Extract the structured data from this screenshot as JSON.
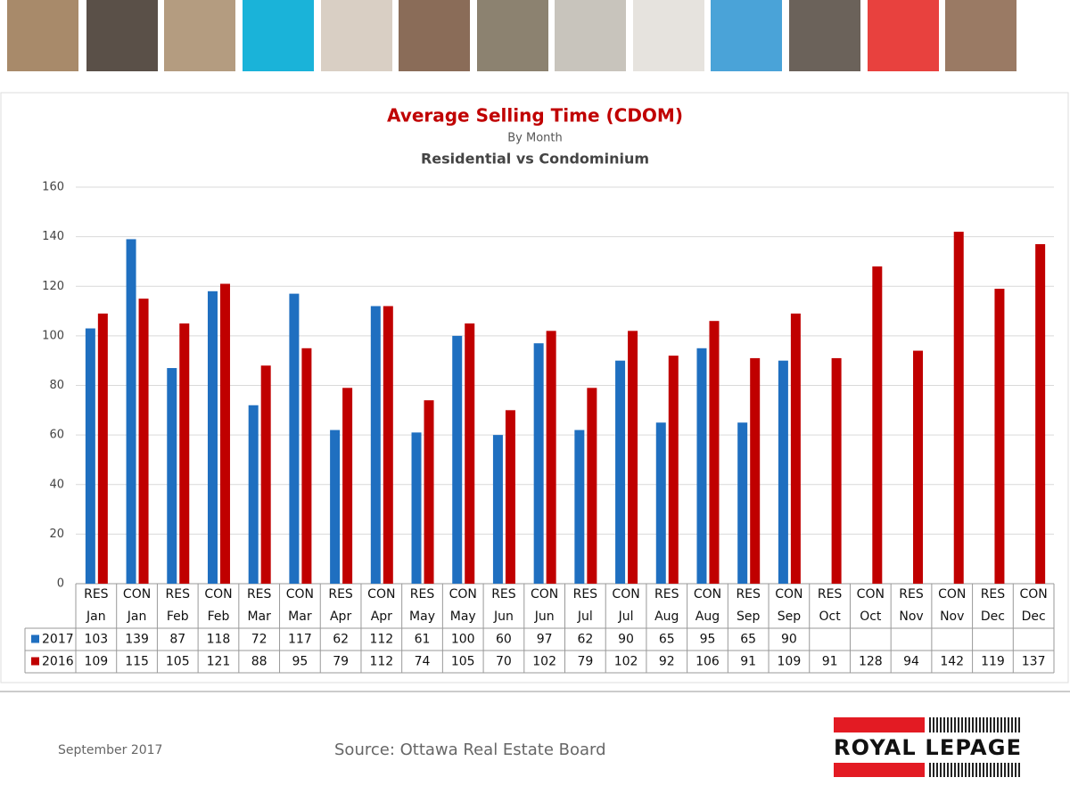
{
  "chart_data": {
    "type": "bar",
    "title": "Average Selling Time (CDOM)",
    "subtitle": "By Month",
    "subtitle2": "Residential vs Condominium",
    "categories": [
      [
        "RES",
        "Jan"
      ],
      [
        "CON",
        "Jan"
      ],
      [
        "RES",
        "Feb"
      ],
      [
        "CON",
        "Feb"
      ],
      [
        "RES",
        "Mar"
      ],
      [
        "CON",
        "Mar"
      ],
      [
        "RES",
        "Apr"
      ],
      [
        "CON",
        "Apr"
      ],
      [
        "RES",
        "May"
      ],
      [
        "CON",
        "May"
      ],
      [
        "RES",
        "Jun"
      ],
      [
        "CON",
        "Jun"
      ],
      [
        "RES",
        "Jul"
      ],
      [
        "CON",
        "Jul"
      ],
      [
        "RES",
        "Aug"
      ],
      [
        "CON",
        "Aug"
      ],
      [
        "RES",
        "Sep"
      ],
      [
        "CON",
        "Sep"
      ],
      [
        "RES",
        "Oct"
      ],
      [
        "CON",
        "Oct"
      ],
      [
        "RES",
        "Nov"
      ],
      [
        "CON",
        "Nov"
      ],
      [
        "RES",
        "Dec"
      ],
      [
        "CON",
        "Dec"
      ]
    ],
    "series": [
      {
        "name": "2017",
        "color": "#1f6fc0",
        "values": [
          103,
          139,
          87,
          118,
          72,
          117,
          62,
          112,
          61,
          100,
          60,
          97,
          62,
          90,
          65,
          95,
          65,
          90,
          null,
          null,
          null,
          null,
          null,
          null
        ]
      },
      {
        "name": "2016",
        "color": "#c00000",
        "values": [
          109,
          115,
          105,
          121,
          88,
          95,
          79,
          112,
          74,
          105,
          70,
          102,
          79,
          102,
          92,
          106,
          91,
          109,
          91,
          128,
          94,
          142,
          119,
          137
        ]
      }
    ],
    "ylim": [
      0,
      160
    ],
    "yticks": [
      0,
      20,
      40,
      60,
      80,
      100,
      120,
      140,
      160
    ],
    "grid": true
  },
  "footer": {
    "date": "September 2017",
    "source": "Source: Ottawa Real Estate Board",
    "logo": "ROYAL LEPAGE"
  }
}
